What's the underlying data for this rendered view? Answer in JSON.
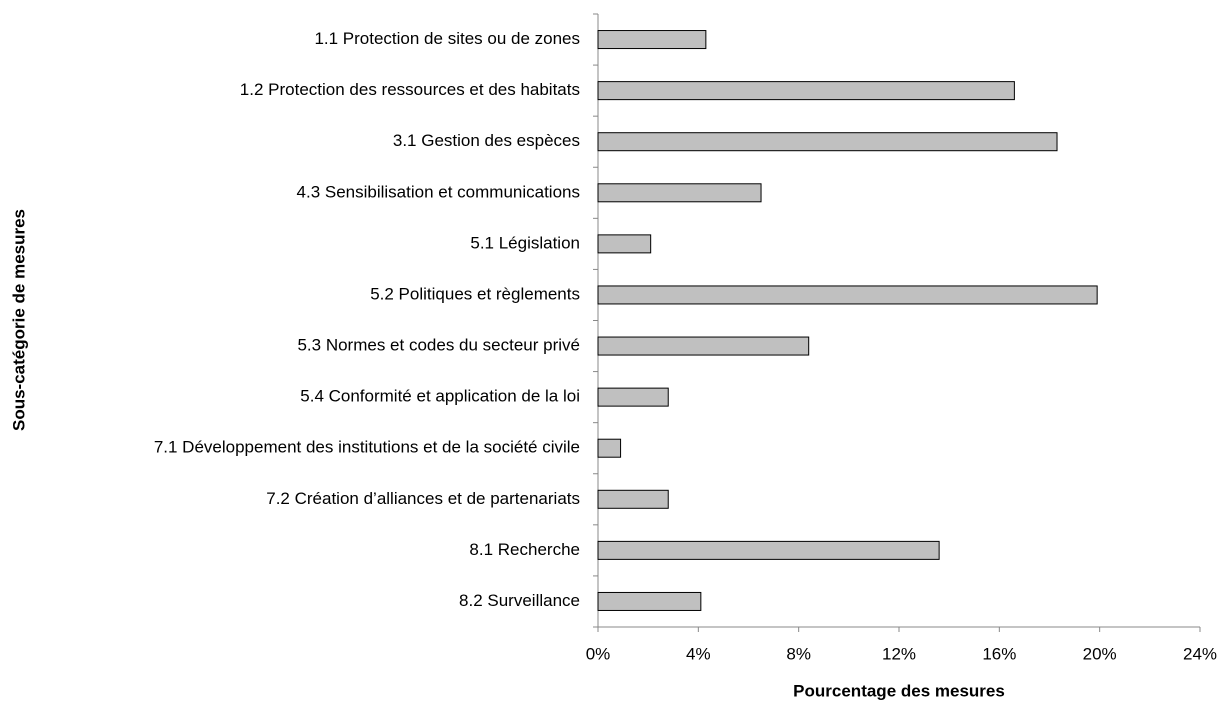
{
  "chart_data": {
    "type": "barh",
    "xlabel": "Pourcentage des mesures",
    "ylabel": "Sous-catégorie de mesures",
    "categories": [
      "1.1 Protection de sites ou de zones",
      "1.2 Protection des ressources et des habitats",
      "3.1 Gestion des espèces",
      "4.3 Sensibilisation et communications",
      "5.1 Législation",
      "5.2 Politiques et règlements",
      "5.3 Normes et codes du secteur privé",
      "5.4 Conformité et application de la loi",
      "7.1 Développement des institutions et de la société civile",
      "7.2 Création d’alliances et de partenariats",
      "8.1 Recherche",
      "8.2 Surveillance"
    ],
    "values": [
      4.3,
      16.6,
      18.3,
      6.5,
      2.1,
      19.9,
      8.4,
      2.8,
      0.9,
      2.8,
      13.6,
      4.1
    ],
    "color": "#c0c0c0",
    "xlim": [
      0,
      24
    ],
    "xticks": [
      {
        "value": 0,
        "label": "0%"
      },
      {
        "value": 4,
        "label": "4%"
      },
      {
        "value": 8,
        "label": "8%"
      },
      {
        "value": 12,
        "label": "12%"
      },
      {
        "value": 16,
        "label": "16%"
      },
      {
        "value": 20,
        "label": "20%"
      },
      {
        "value": 24,
        "label": "24%"
      }
    ],
    "grid": false
  }
}
